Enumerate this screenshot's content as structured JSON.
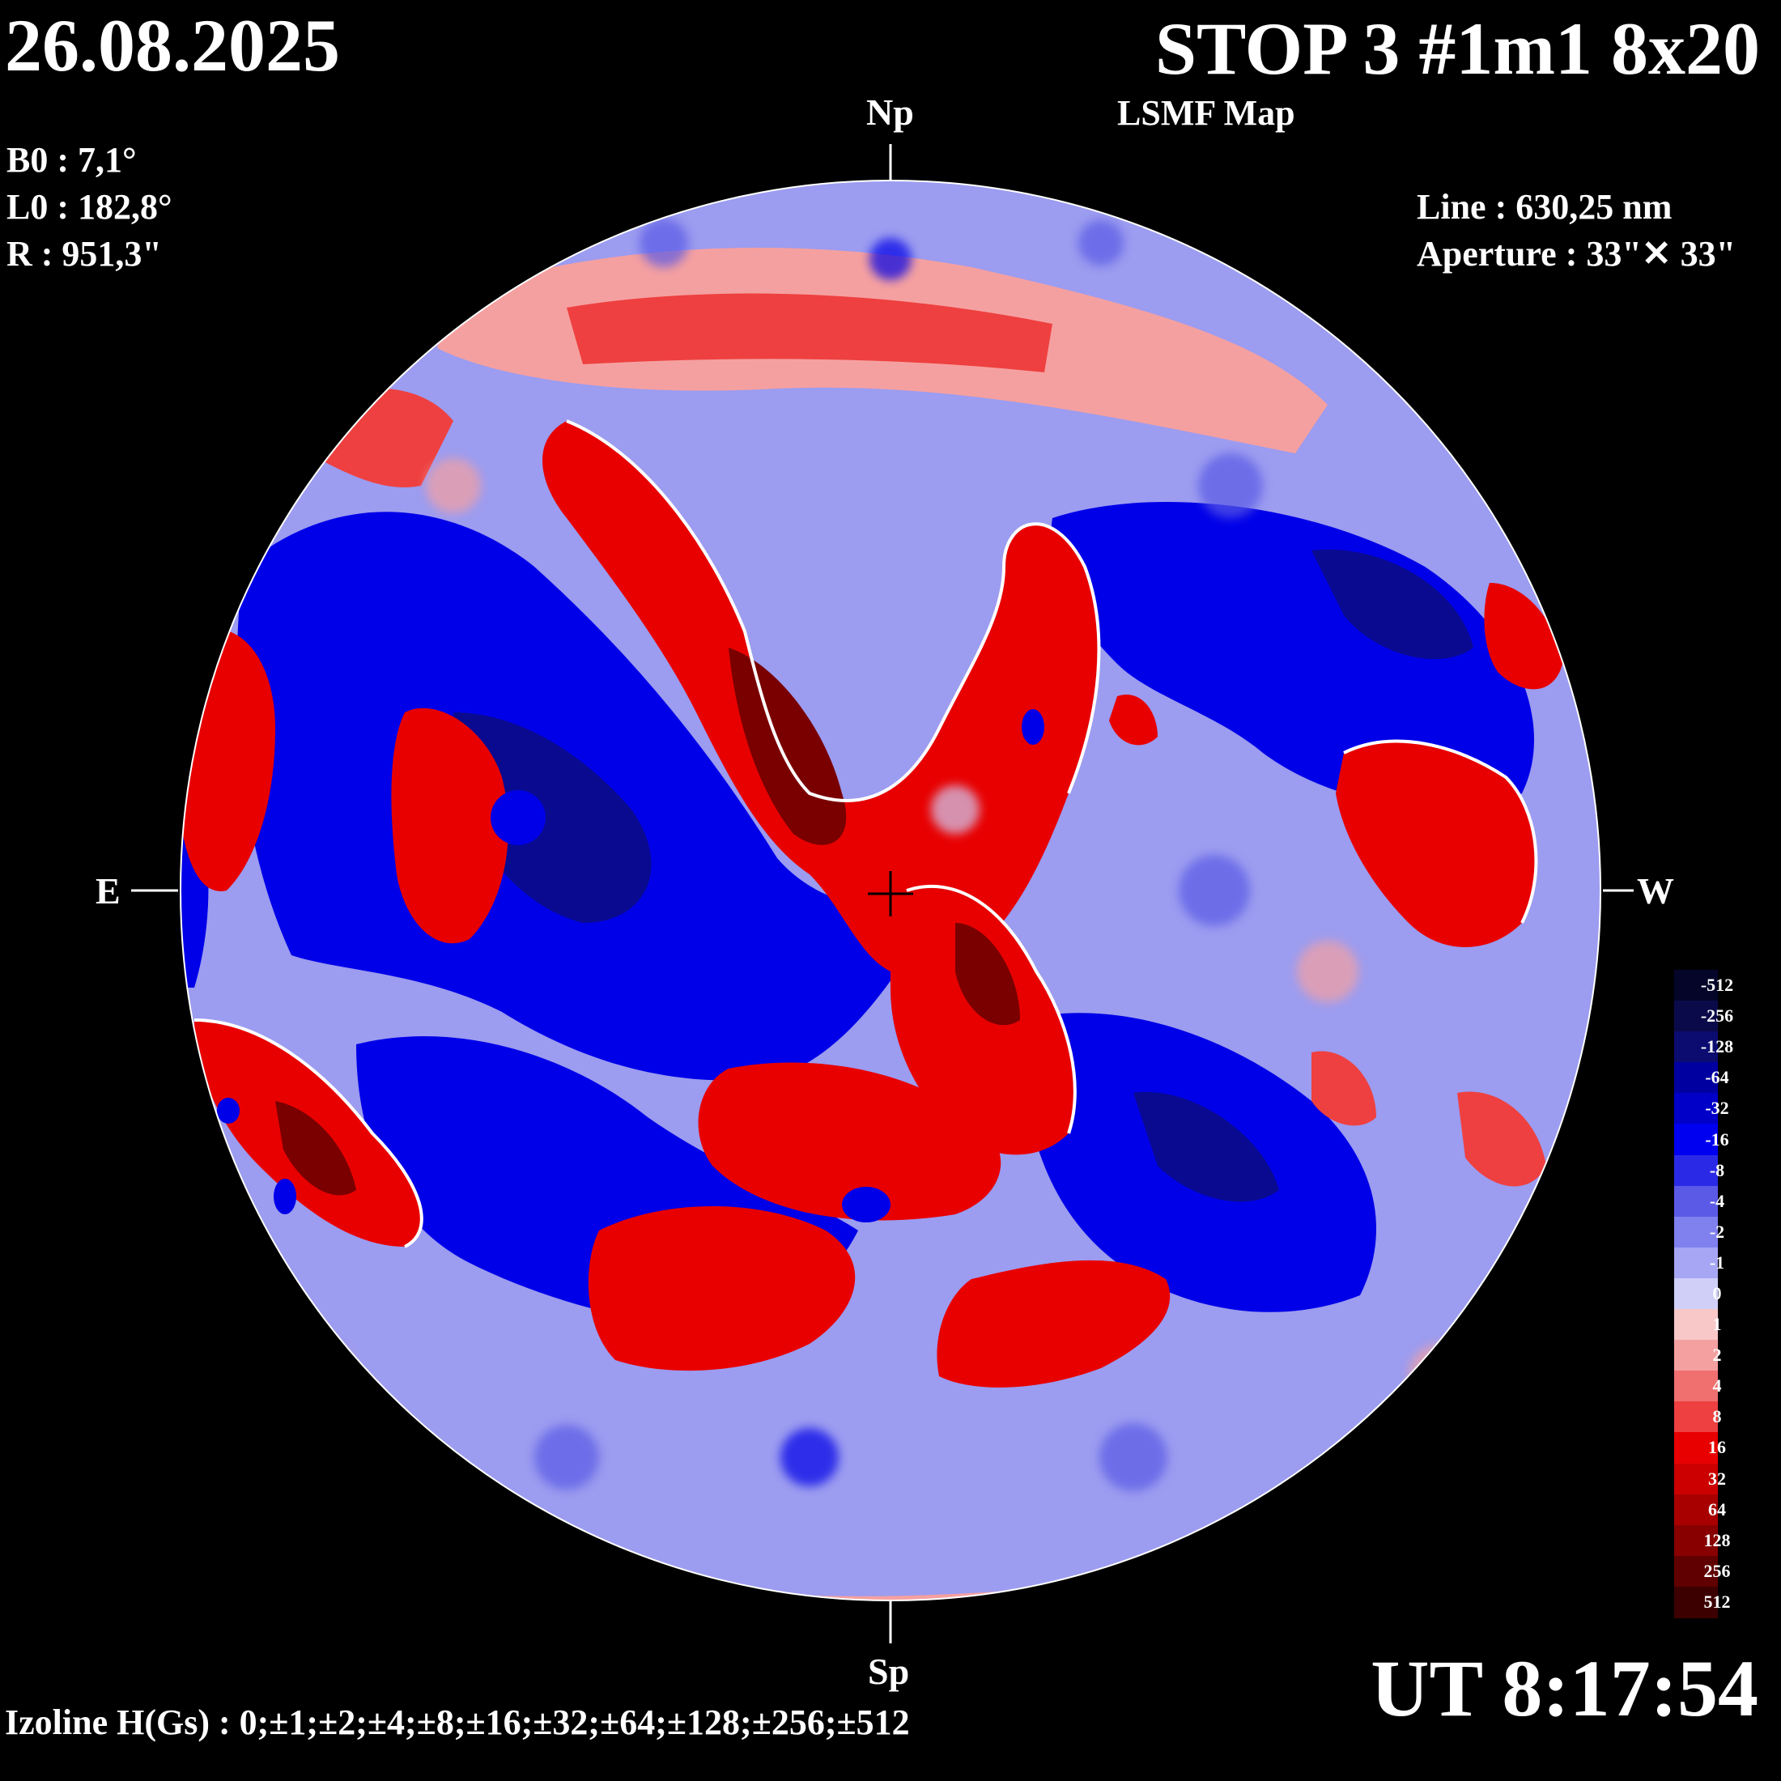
{
  "header": {
    "date": "26.08.2025",
    "title": "STOP 3 #1m1 8x20",
    "subtitle": "LSMF  Map"
  },
  "params": {
    "b0": "B0 : 7,1°",
    "l0": "L0 : 182,8°",
    "r": "R  : 951,3\"",
    "line": "Line :  630,25 nm",
    "aperture": "Aperture : 33\"✕ 33\""
  },
  "orientation": {
    "north": "Np",
    "south": "Sp",
    "east": "E",
    "west": "W"
  },
  "footer": {
    "izoline": "Izoline H(Gs) : 0;±1;±2;±4;±8;±16;±32;±64;±128;±256;±512",
    "time": "UT 8:17:54"
  },
  "colorbar": {
    "levels": [
      {
        "label": "-512",
        "color": "#05052a"
      },
      {
        "label": "-256",
        "color": "#0a0a4a"
      },
      {
        "label": "-128",
        "color": "#0c0c70"
      },
      {
        "label": "-64",
        "color": "#0000a0"
      },
      {
        "label": "-32",
        "color": "#0000c8"
      },
      {
        "label": "-16",
        "color": "#0000f0"
      },
      {
        "label": "-8",
        "color": "#2a2ae6"
      },
      {
        "label": "-4",
        "color": "#5a5ae6"
      },
      {
        "label": "-2",
        "color": "#8080ee"
      },
      {
        "label": "-1",
        "color": "#a6a6f4"
      },
      {
        "label": "0",
        "color": "#cfcff8"
      },
      {
        "label": "1",
        "color": "#f8c8c8"
      },
      {
        "label": "2",
        "color": "#f5a0a0"
      },
      {
        "label": "4",
        "color": "#f07070"
      },
      {
        "label": "8",
        "color": "#ee4040"
      },
      {
        "label": "16",
        "color": "#e80000"
      },
      {
        "label": "32",
        "color": "#cc0000"
      },
      {
        "label": "64",
        "color": "#a80000"
      },
      {
        "label": "128",
        "color": "#880000"
      },
      {
        "label": "256",
        "color": "#600000"
      },
      {
        "label": "512",
        "color": "#3c0000"
      }
    ]
  },
  "map_colors": {
    "background": "#000000",
    "negative_weak": "#a6a6f4",
    "negative_mid": "#5a5ae6",
    "negative_strong": "#0000e8",
    "negative_core": "#00008a",
    "positive_weak": "#f5a0a0",
    "positive_mid": "#ee4040",
    "positive_strong": "#e80000",
    "positive_core": "#7a0000",
    "zero_line": "#ffffff"
  }
}
